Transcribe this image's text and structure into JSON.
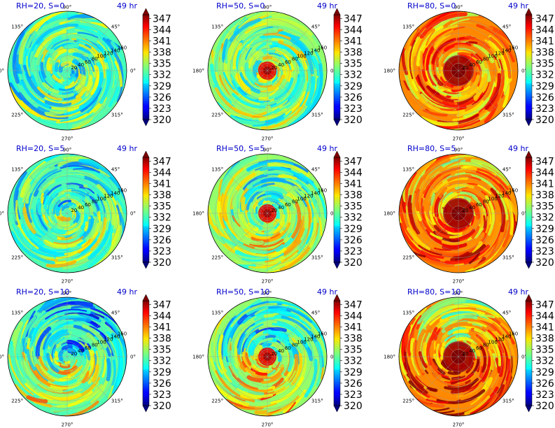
{
  "chart_data": {
    "type": "polar-heatmap-grid",
    "layout": {
      "rows": 3,
      "cols": 3
    },
    "panels": [
      {
        "label": "RH=20, S=0",
        "time": "49 hr",
        "rh": 20,
        "s": 0
      },
      {
        "label": "RH=50, S=0",
        "time": "49 hr",
        "rh": 50,
        "s": 0
      },
      {
        "label": "RH=80, S=0",
        "time": "49 hr",
        "rh": 80,
        "s": 0
      },
      {
        "label": "RH=20, S=5",
        "time": "49 hr",
        "rh": 20,
        "s": 5
      },
      {
        "label": "RH=50, S=5",
        "time": "49 hr",
        "rh": 50,
        "s": 5
      },
      {
        "label": "RH=80, S=5",
        "time": "49 hr",
        "rh": 80,
        "s": 5
      },
      {
        "label": "RH=20, S=10",
        "time": "49 hr",
        "rh": 20,
        "s": 10
      },
      {
        "label": "RH=50, S=10",
        "time": "49 hr",
        "rh": 50,
        "s": 10
      },
      {
        "label": "RH=80, S=10",
        "time": "49 hr",
        "rh": 80,
        "s": 10
      }
    ],
    "angle_ticks": [
      "0°",
      "45°",
      "90°",
      "135°",
      "180°",
      "225°",
      "270°",
      "315°"
    ],
    "radial_ticks": [
      "20",
      "40",
      "60",
      "80",
      "100",
      "120",
      "140",
      "160"
    ],
    "radial_range": [
      0,
      160
    ],
    "colorbar": {
      "ticks": [
        "347",
        "344",
        "341",
        "338",
        "335",
        "332",
        "329",
        "326",
        "323",
        "320"
      ],
      "range": [
        320,
        348
      ],
      "colormap": "jet",
      "extend": "both"
    },
    "grid": true
  }
}
